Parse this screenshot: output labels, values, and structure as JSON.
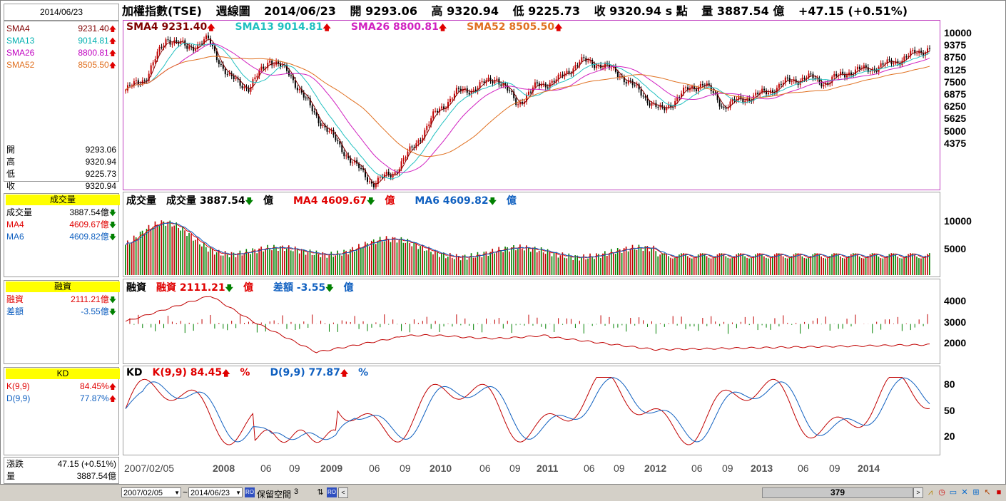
{
  "left": {
    "date": "2014/06/23",
    "sma": [
      {
        "label": "SMA4",
        "value": "9231.40",
        "color": "#800000"
      },
      {
        "label": "SMA13",
        "value": "9014.81",
        "color": "#00b0b0"
      },
      {
        "label": "SMA26",
        "value": "8800.81",
        "color": "#c000c0"
      },
      {
        "label": "SMA52",
        "value": "8505.50",
        "color": "#e07020"
      }
    ],
    "ohlc": [
      {
        "label": "開",
        "value": "9293.06"
      },
      {
        "label": "高",
        "value": "9320.94"
      },
      {
        "label": "低",
        "value": "9225.73"
      },
      {
        "label": "收",
        "value": "9320.94"
      }
    ],
    "volume_header": "成交量",
    "volume": [
      {
        "label": "成交量",
        "value": "3887.54億",
        "color": "#000000"
      },
      {
        "label": "MA4",
        "value": "4609.67億",
        "color": "#e00000"
      },
      {
        "label": "MA6",
        "value": "4609.82億",
        "color": "#1060c0"
      }
    ],
    "margin_header": "融資",
    "margin": [
      {
        "label": "融資",
        "value": "2111.21億",
        "color": "#e00000"
      },
      {
        "label": "差額",
        "value": "-3.55億",
        "color": "#1060c0"
      }
    ],
    "kd_header": "KD",
    "kd": [
      {
        "label": "K(9,9)",
        "value": "84.45%",
        "color": "#e00000"
      },
      {
        "label": "D(9,9)",
        "value": "77.87%",
        "color": "#1060c0"
      }
    ],
    "change": [
      {
        "label": "漲跌",
        "value": "47.15 (+0.51%)"
      },
      {
        "label": "量",
        "value": "3887.54億"
      }
    ]
  },
  "topbar": {
    "name": "加權指數(TSE)",
    "period": "週線圖",
    "date": "2014/06/23",
    "open": "開 9293.06",
    "high": "高 9320.94",
    "low": "低 9225.73",
    "close": "收 9320.94 s 點",
    "vol": "量 3887.54 億",
    "chg": "+47.15 (+0.51%)"
  },
  "price_legend": [
    {
      "text": "SMA4 9231.40",
      "color": "#800000"
    },
    {
      "text": "SMA13 9014.81",
      "color": "#20c0c0"
    },
    {
      "text": "SMA26 8800.81",
      "color": "#d020c0"
    },
    {
      "text": "SMA52 8505.50",
      "color": "#e07020"
    }
  ],
  "volume_legend": [
    {
      "text": "成交量",
      "color": "#000000",
      "weight": "normal"
    },
    {
      "text": "成交量 3887.54",
      "color": "#000000",
      "suffix": "億",
      "arrow": "dn"
    },
    {
      "text": "MA4 4609.67",
      "color": "#e00000",
      "suffix": "億",
      "arrow": "dn"
    },
    {
      "text": "MA6 4609.82",
      "color": "#1060c0",
      "suffix": "億",
      "arrow": "dn"
    }
  ],
  "margin_legend": [
    {
      "text": "融資",
      "color": "#000000"
    },
    {
      "text": "融資 2111.21",
      "color": "#e00000",
      "suffix": "億",
      "arrow": "dn"
    },
    {
      "text": "差額 -3.55",
      "color": "#1060c0",
      "suffix": "億",
      "arrow": "dn"
    }
  ],
  "kd_legend": [
    {
      "text": "KD",
      "color": "#000000"
    },
    {
      "text": "K(9,9) 84.45",
      "color": "#e00000",
      "suffix": "%",
      "arrow": "up"
    },
    {
      "text": "D(9,9) 77.87",
      "color": "#1060c0",
      "suffix": "%",
      "arrow": "up"
    }
  ],
  "price_axis": [
    "10000",
    "9375",
    "8750",
    "8125",
    "7500",
    "6875",
    "6250",
    "5625",
    "5000",
    "4375"
  ],
  "volume_axis": [
    "10000",
    "5000"
  ],
  "margin_axis": [
    "4000",
    "3000",
    "2000"
  ],
  "kd_axis": [
    "80",
    "50",
    "20"
  ],
  "x_labels": [
    {
      "t": "2007/02/05",
      "b": false
    },
    {
      "t": "2008",
      "b": true
    },
    {
      "t": "06",
      "b": false
    },
    {
      "t": "09",
      "b": false
    },
    {
      "t": "2009",
      "b": true
    },
    {
      "t": "06",
      "b": false
    },
    {
      "t": "09",
      "b": false
    },
    {
      "t": "2010",
      "b": true
    },
    {
      "t": "06",
      "b": false
    },
    {
      "t": "09",
      "b": false
    },
    {
      "t": "2011",
      "b": true
    },
    {
      "t": "06",
      "b": false
    },
    {
      "t": "09",
      "b": false
    },
    {
      "t": "2012",
      "b": true
    },
    {
      "t": "06",
      "b": false
    },
    {
      "t": "09",
      "b": false
    },
    {
      "t": "2013",
      "b": true
    },
    {
      "t": "06",
      "b": false
    },
    {
      "t": "09",
      "b": false
    },
    {
      "t": "2014",
      "b": true
    }
  ],
  "bottom": {
    "start_date": "2007/02/05",
    "tilde": "~",
    "end_date": "2014/06/23",
    "reserve_label": "保留空間",
    "reserve_value": "3",
    "scroll_value": "379"
  },
  "chart_data": {
    "type": "line",
    "title": "加權指數(TSE) 週線圖",
    "x_start": "2007/02/05",
    "x_end": "2014/06/23",
    "price_ylim": [
      4100,
      10200
    ],
    "price_series_close": [
      7700,
      8200,
      9700,
      9300,
      9600,
      8200,
      7800,
      8900,
      8300,
      7000,
      6000,
      5000,
      4200,
      4600,
      5600,
      6800,
      7600,
      7800,
      8200,
      7200,
      7900,
      8100,
      8800,
      8700,
      8300,
      7600,
      6900,
      7600,
      8000,
      7100,
      7400,
      7600,
      8000,
      8200,
      8000,
      8400,
      8500,
      8700,
      9000,
      9320
    ],
    "sma52_values": [
      7000,
      7500,
      8000,
      8400,
      8600,
      8300,
      7800,
      7000,
      6200,
      5600,
      5600,
      6300,
      7100,
      7500,
      7800,
      8000,
      8300,
      8300,
      7900,
      7500,
      7400,
      7400,
      7600,
      7800,
      7900,
      8100,
      8300,
      8505
    ],
    "volume_ylim": [
      0,
      13000
    ],
    "margin_ylim": [
      1500,
      4500
    ],
    "kd_ylim": [
      0,
      100
    ]
  }
}
